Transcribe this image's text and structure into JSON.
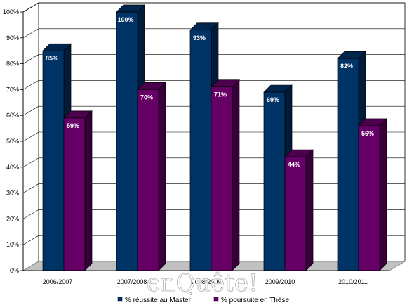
{
  "chart_data": {
    "type": "bar",
    "categories": [
      "2006/2007",
      "2007/2008",
      "2008/2009",
      "2009/2010",
      "2010/2011"
    ],
    "series": [
      {
        "name": "% réussite au Master",
        "values": [
          85,
          100,
          93,
          69,
          82
        ],
        "labels": [
          "85%",
          "100%",
          "93%",
          "69%",
          "82%"
        ]
      },
      {
        "name": "% poursuite en Thèse",
        "values": [
          59,
          70,
          71,
          44,
          56
        ],
        "labels": [
          "59%",
          "70%",
          "71%",
          "44%",
          "56%"
        ]
      }
    ],
    "yticks": [
      "0%",
      "10%",
      "20%",
      "30%",
      "40%",
      "50%",
      "60%",
      "70%",
      "80%",
      "90%",
      "100%"
    ],
    "ylim": [
      0,
      100
    ],
    "colors": [
      "#003366",
      "#660066"
    ],
    "grid": true,
    "legend": "bottom",
    "bar_style": "3d"
  },
  "watermark": "enQuête!"
}
